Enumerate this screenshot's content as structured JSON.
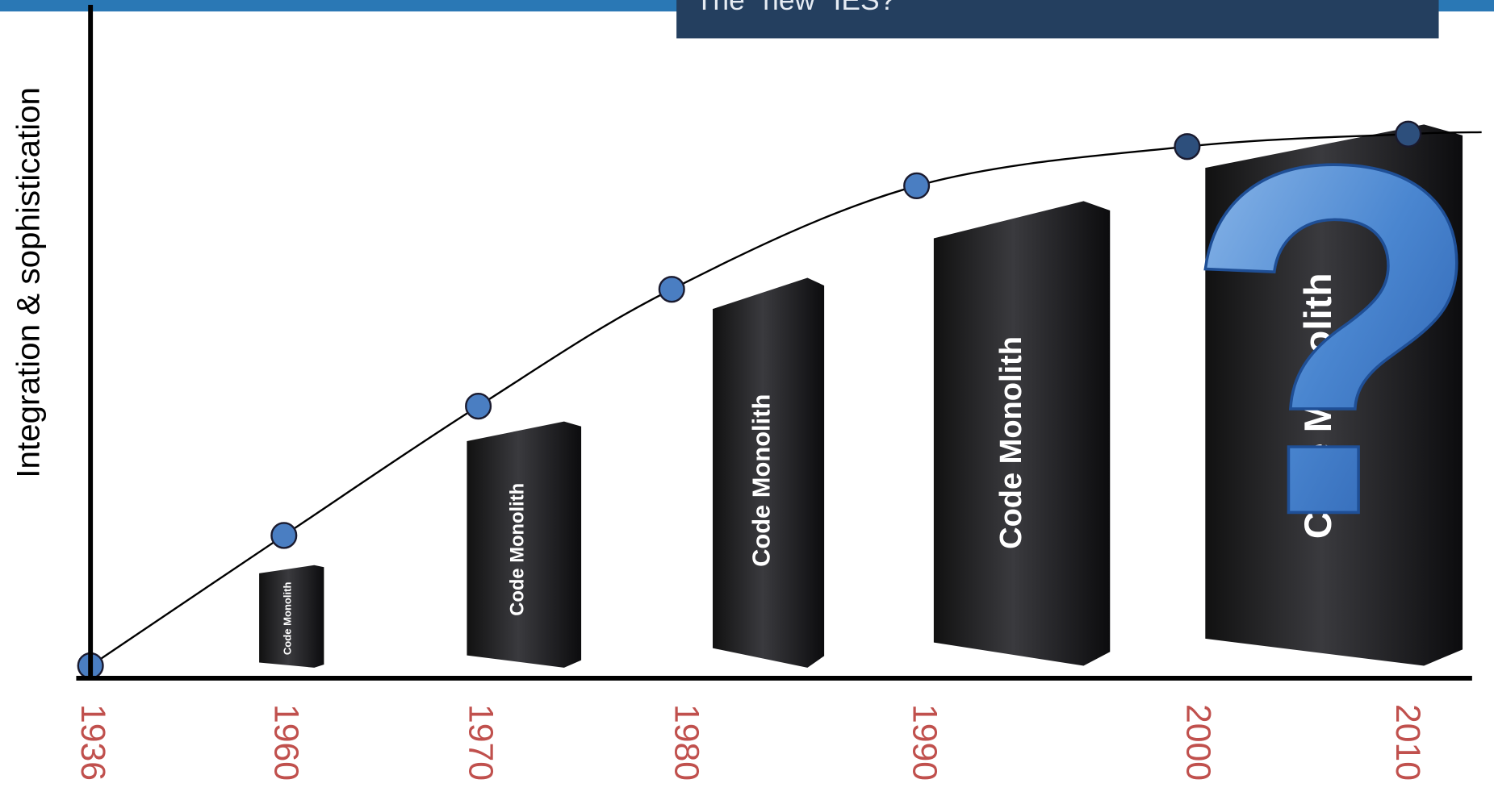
{
  "header": {
    "title": "The \"new\" IES?"
  },
  "axis": {
    "y_label": "Integration & sophistication"
  },
  "timeline": {
    "years": [
      "1936",
      "1960",
      "1970",
      "1980",
      "1990",
      "2000",
      "2010"
    ]
  },
  "monoliths": [
    {
      "label": "Code Monolith"
    },
    {
      "label": "Code Monolith"
    },
    {
      "label": "Code Monolith"
    },
    {
      "label": "Code Monolith"
    },
    {
      "label": "Code Monolith"
    }
  ],
  "question_mark": "?"
}
